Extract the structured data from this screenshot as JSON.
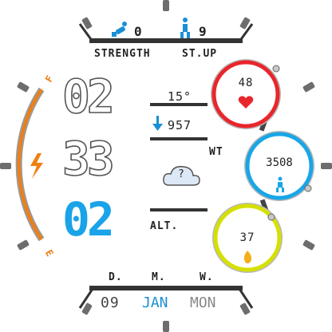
{
  "top": {
    "strength_value": "0",
    "stup_value": "9",
    "strength_label": "STRENGTH",
    "stup_label": "ST.UP"
  },
  "battery": {
    "top_letter": "F",
    "bottom_letter": "E"
  },
  "time": {
    "hours": "02",
    "minutes": "33",
    "seconds": "02"
  },
  "weather": {
    "temperature": "15°",
    "pressure": "957",
    "wt_label": "WT",
    "condition_icon_text": "?",
    "alt_label": "ALT."
  },
  "rings": {
    "heart_rate": {
      "value": "48"
    },
    "steps": {
      "value": "3508"
    },
    "calories": {
      "value": "37"
    }
  },
  "bottom": {
    "d_label": "D.",
    "m_label": "M.",
    "w_label": "W.",
    "day": "09",
    "month": "JAN",
    "weekday": "MON"
  },
  "colors": {
    "accent_blue": "#1aa3e8",
    "heart_red": "#e8262c",
    "steps_blue": "#19a6e6",
    "calorie_yellow": "#d6e000",
    "battery_orange": "#f07f12",
    "icon_blue": "#1a8fd6"
  }
}
